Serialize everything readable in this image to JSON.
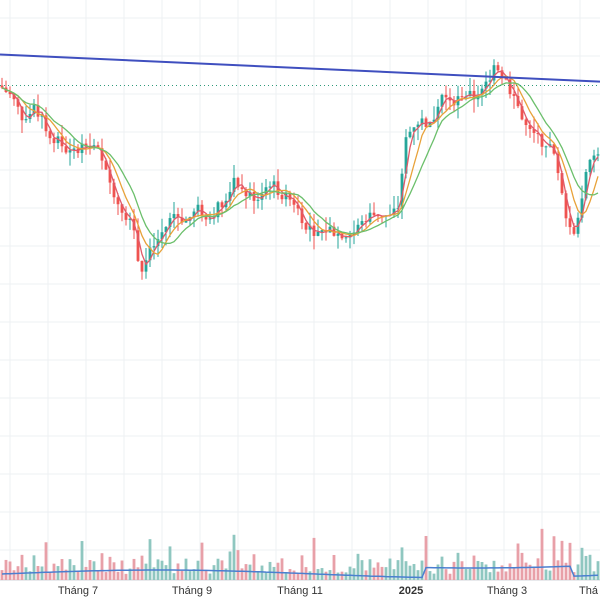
{
  "chart_data": {
    "type": "candlestick",
    "x_axis": {
      "tick_labels": [
        {
          "label": "Tháng 7",
          "bold": false,
          "pos": 0.13
        },
        {
          "label": "Tháng 9",
          "bold": false,
          "pos": 0.32
        },
        {
          "label": "Tháng 11",
          "bold": false,
          "pos": 0.5
        },
        {
          "label": "2025",
          "bold": true,
          "pos": 0.685
        },
        {
          "label": "Tháng 3",
          "bold": false,
          "pos": 0.845
        },
        {
          "label": "Thá",
          "bold": false,
          "pos": 1.0
        }
      ]
    },
    "grid": true,
    "price_range": [
      0,
      100
    ],
    "price_path": [
      [
        0.0,
        76
      ],
      [
        0.02,
        73
      ],
      [
        0.04,
        67
      ],
      [
        0.06,
        70
      ],
      [
        0.08,
        64
      ],
      [
        0.1,
        61
      ],
      [
        0.12,
        58
      ],
      [
        0.14,
        62
      ],
      [
        0.16,
        60
      ],
      [
        0.18,
        52
      ],
      [
        0.2,
        45
      ],
      [
        0.22,
        40
      ],
      [
        0.235,
        28
      ],
      [
        0.25,
        33
      ],
      [
        0.27,
        38
      ],
      [
        0.29,
        43
      ],
      [
        0.31,
        41
      ],
      [
        0.33,
        44
      ],
      [
        0.35,
        42
      ],
      [
        0.37,
        46
      ],
      [
        0.39,
        51
      ],
      [
        0.41,
        48
      ],
      [
        0.43,
        47
      ],
      [
        0.45,
        51
      ],
      [
        0.47,
        48
      ],
      [
        0.49,
        46
      ],
      [
        0.51,
        40
      ],
      [
        0.53,
        38
      ],
      [
        0.55,
        39
      ],
      [
        0.57,
        37
      ],
      [
        0.59,
        38
      ],
      [
        0.61,
        42
      ],
      [
        0.63,
        43
      ],
      [
        0.65,
        42
      ],
      [
        0.665,
        45
      ],
      [
        0.675,
        62
      ],
      [
        0.69,
        66
      ],
      [
        0.7,
        67
      ],
      [
        0.72,
        66
      ],
      [
        0.735,
        74
      ],
      [
        0.75,
        71
      ],
      [
        0.77,
        74
      ],
      [
        0.79,
        73
      ],
      [
        0.81,
        76
      ],
      [
        0.825,
        82
      ],
      [
        0.84,
        78
      ],
      [
        0.86,
        72
      ],
      [
        0.88,
        64
      ],
      [
        0.9,
        62
      ],
      [
        0.92,
        60
      ],
      [
        0.94,
        45
      ],
      [
        0.955,
        37
      ],
      [
        0.965,
        44
      ],
      [
        0.98,
        55
      ],
      [
        1.0,
        60
      ]
    ],
    "ma_lines": [
      {
        "color": "#e05a6a",
        "smooth": 2,
        "offset": 0
      },
      {
        "color": "#e8a23a",
        "smooth": 5,
        "offset": 0
      },
      {
        "color": "#6bbf6b",
        "smooth": 9,
        "offset": 0
      }
    ],
    "resistance_line": {
      "from": [
        0.0,
        84
      ],
      "to": [
        1.0,
        77
      ],
      "color": "#3f4fbf"
    },
    "dotted_level": {
      "value": 76,
      "color": "#2f9a7a"
    },
    "volume": {
      "up_color": "#8fc7c0",
      "down_color": "#e8a0a8",
      "ma_color": "#4a7fd0"
    }
  }
}
